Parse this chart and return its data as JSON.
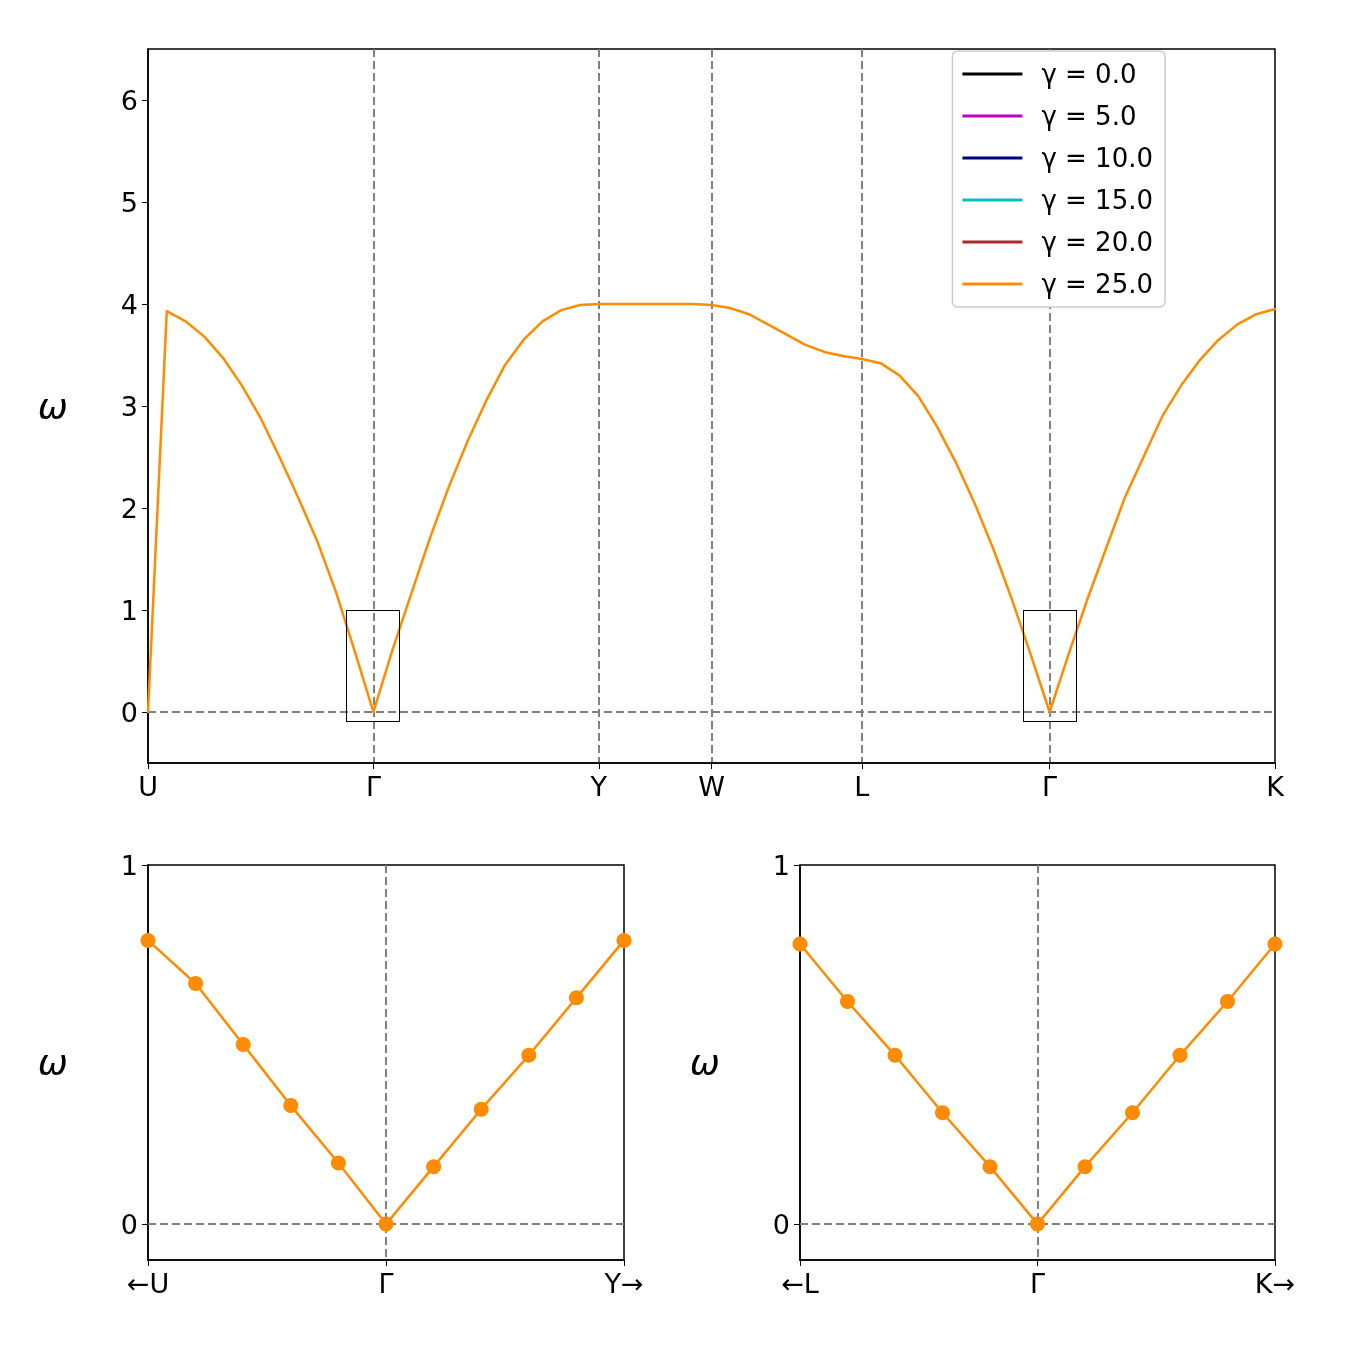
{
  "chart_data": [
    {
      "type": "line",
      "ylabel": "ω",
      "ylim": [
        -0.5,
        6.5
      ],
      "yticks": [
        0,
        1,
        2,
        3,
        4,
        5,
        6
      ],
      "categories": [
        "U",
        null,
        null,
        null,
        null,
        null,
        null,
        null,
        null,
        null,
        null,
        null,
        "Γ",
        null,
        null,
        null,
        null,
        null,
        null,
        null,
        null,
        null,
        null,
        null,
        "Y",
        null,
        null,
        null,
        null,
        null,
        "W",
        null,
        null,
        null,
        null,
        null,
        null,
        null,
        "L",
        null,
        null,
        null,
        null,
        null,
        null,
        null,
        null,
        null,
        "Γ",
        null,
        null,
        null,
        null,
        null,
        null,
        null,
        null,
        null,
        null,
        null,
        "K"
      ],
      "series": [
        {
          "name": "γ = 0.0",
          "color": "#000000",
          "values": [
            null,
            null,
            null,
            null,
            null,
            null,
            null,
            null,
            null,
            null,
            null,
            null,
            null,
            null,
            null,
            null,
            null,
            null,
            null,
            null,
            null,
            null,
            null,
            null,
            null,
            null,
            null,
            null,
            null,
            null,
            null,
            null,
            null,
            null,
            null,
            null,
            null,
            null,
            null,
            null,
            null,
            null,
            null,
            null,
            null,
            null,
            null,
            null,
            null,
            null,
            null,
            null,
            null,
            null,
            null,
            null,
            null,
            null,
            null,
            null,
            null
          ]
        },
        {
          "name": "γ = 5.0",
          "color": "#bf00bf",
          "values": [
            null,
            null,
            null,
            null,
            null,
            null,
            null,
            null,
            null,
            null,
            null,
            null,
            null,
            null,
            null,
            null,
            null,
            null,
            null,
            null,
            null,
            null,
            null,
            null,
            null,
            null,
            null,
            null,
            null,
            null,
            null,
            null,
            null,
            null,
            null,
            null,
            null,
            null,
            null,
            null,
            null,
            null,
            null,
            null,
            null,
            null,
            null,
            null,
            null,
            null,
            null,
            null,
            null,
            null,
            null,
            null,
            null,
            null,
            null,
            null,
            null
          ]
        },
        {
          "name": "γ = 10.0",
          "color": "#000080",
          "values": [
            null,
            null,
            null,
            null,
            null,
            null,
            null,
            null,
            null,
            null,
            null,
            null,
            null,
            null,
            null,
            null,
            null,
            null,
            null,
            null,
            null,
            null,
            null,
            null,
            null,
            null,
            null,
            null,
            null,
            null,
            null,
            null,
            null,
            null,
            null,
            null,
            null,
            null,
            null,
            null,
            null,
            null,
            null,
            null,
            null,
            null,
            null,
            null,
            null,
            null,
            null,
            null,
            null,
            null,
            null,
            null,
            null,
            null,
            null,
            null,
            null
          ]
        },
        {
          "name": "γ = 15.0",
          "color": "#00bfbf",
          "values": [
            null,
            null,
            null,
            null,
            null,
            null,
            null,
            null,
            null,
            null,
            null,
            null,
            null,
            null,
            null,
            null,
            null,
            null,
            null,
            null,
            null,
            null,
            null,
            null,
            null,
            null,
            null,
            null,
            null,
            null,
            null,
            null,
            null,
            null,
            null,
            null,
            null,
            null,
            null,
            null,
            null,
            null,
            null,
            null,
            null,
            null,
            null,
            null,
            null,
            null,
            null,
            null,
            null,
            null,
            null,
            null,
            null,
            null,
            null,
            null,
            null
          ]
        },
        {
          "name": "γ = 20.0",
          "color": "#a52a2a",
          "values": [
            null,
            null,
            null,
            null,
            null,
            null,
            null,
            null,
            null,
            null,
            null,
            null,
            null,
            null,
            null,
            null,
            null,
            null,
            null,
            null,
            null,
            null,
            null,
            null,
            null,
            null,
            null,
            null,
            null,
            null,
            null,
            null,
            null,
            null,
            null,
            null,
            null,
            null,
            null,
            null,
            null,
            null,
            null,
            null,
            null,
            null,
            null,
            null,
            null,
            null,
            null,
            null,
            null,
            null,
            null,
            null,
            null,
            null,
            null,
            null,
            null
          ]
        },
        {
          "name": "γ = 25.0",
          "color": "#ff8c00",
          "values": [
            0,
            3.93,
            3.83,
            3.68,
            3.47,
            3.2,
            2.88,
            2.5,
            2.1,
            1.68,
            1.18,
            0.6,
            0,
            0.6,
            1.15,
            1.7,
            2.2,
            2.65,
            3.05,
            3.4,
            3.65,
            3.83,
            3.94,
            3.99,
            4.0,
            4.0,
            4.0,
            4.0,
            4.0,
            4.0,
            3.99,
            3.96,
            3.9,
            3.8,
            3.7,
            3.6,
            3.53,
            3.49,
            3.46,
            3.42,
            3.3,
            3.1,
            2.8,
            2.45,
            2.05,
            1.6,
            1.1,
            0.56,
            0,
            0.56,
            1.1,
            1.6,
            2.1,
            2.5,
            2.9,
            3.2,
            3.45,
            3.65,
            3.8,
            3.9,
            3.95
          ]
        }
      ],
      "ref_lines": [
        {
          "axis": "y",
          "value": 0,
          "color": "#808080",
          "line_style": "dashed"
        }
      ],
      "legend": "top right",
      "grid": "x",
      "marker": "none"
    },
    {
      "type": "line",
      "ylabel": "ω",
      "ylim": [
        -0.1,
        1
      ],
      "yticks": [
        0,
        1
      ],
      "categories": [
        "←U",
        null,
        null,
        null,
        null,
        "Γ",
        null,
        null,
        null,
        null,
        "Y→"
      ],
      "series": [
        {
          "color": "#ff8c00",
          "values": [
            0.79,
            0.67,
            0.5,
            0.33,
            0.17,
            0,
            0.16,
            0.32,
            0.47,
            0.63,
            0.79
          ]
        }
      ],
      "ref_lines": [
        {
          "axis": "y",
          "value": 0,
          "color": "#808080",
          "line_style": "dashed"
        }
      ],
      "grid": "x",
      "marker": "circle"
    },
    {
      "type": "line",
      "ylabel": "ω",
      "ylim": [
        -0.1,
        1
      ],
      "yticks": [
        0,
        1
      ],
      "categories": [
        "←L",
        null,
        null,
        null,
        null,
        "Γ",
        null,
        null,
        null,
        null,
        "K→"
      ],
      "series": [
        {
          "color": "#ff8c00",
          "values": [
            0.78,
            0.62,
            0.47,
            0.31,
            0.16,
            0,
            0.16,
            0.31,
            0.47,
            0.62,
            0.78
          ]
        }
      ],
      "ref_lines": [
        {
          "axis": "y",
          "value": 0,
          "color": "#808080",
          "line_style": "dashed"
        }
      ],
      "grid": "x",
      "marker": "circle"
    }
  ]
}
